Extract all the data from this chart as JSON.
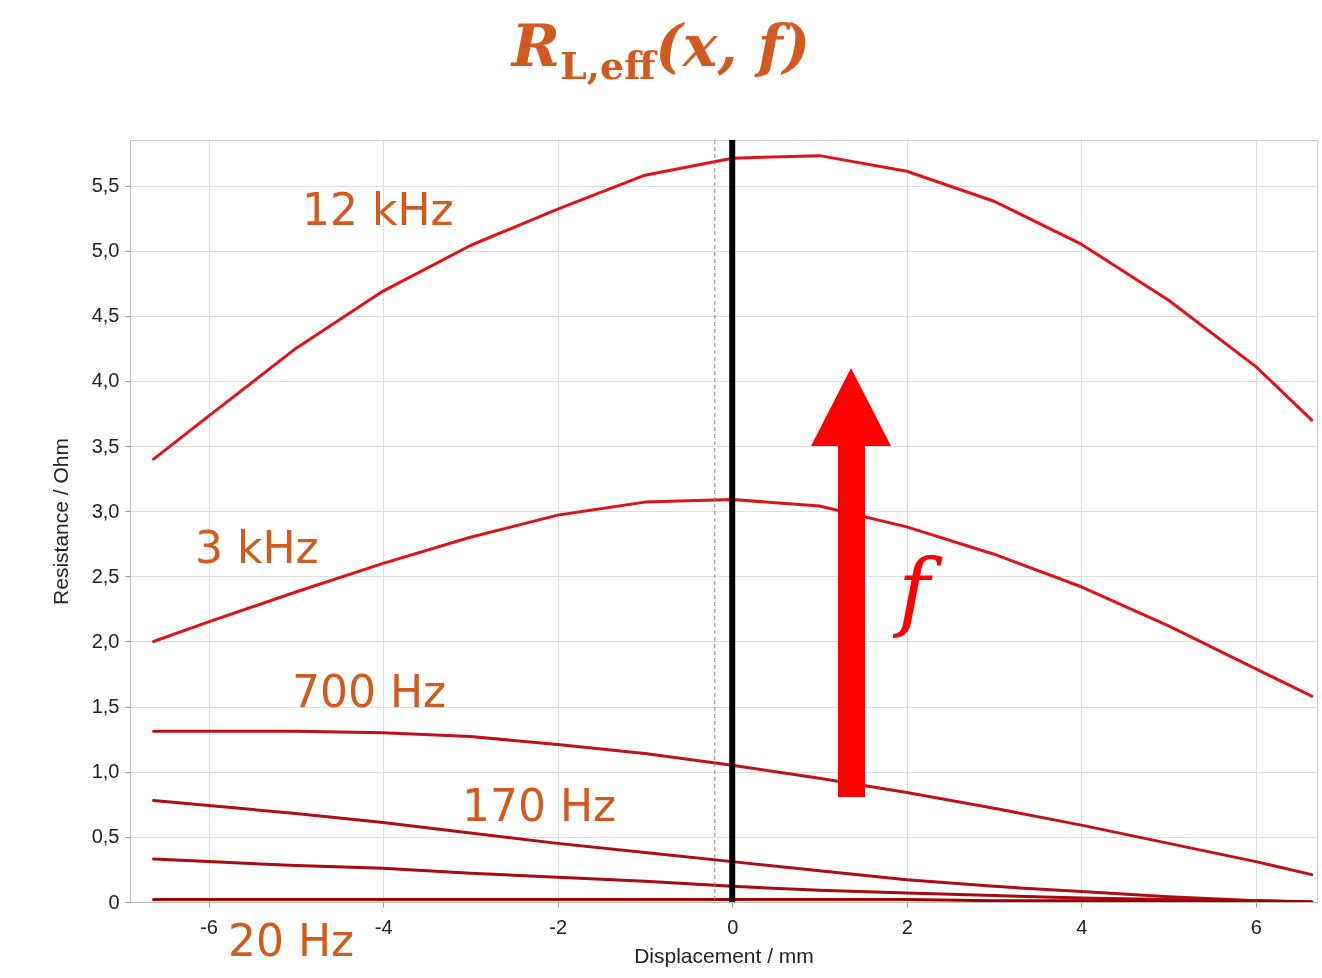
{
  "chart_data": {
    "type": "line",
    "title": "R$_{L,eff}$(x, f)",
    "xlabel": "Displacement / mm",
    "ylabel": "Resistance / Ohm",
    "x": [
      -6.63,
      -6,
      -5,
      -4,
      -3,
      -2,
      -1,
      0,
      1,
      2,
      3,
      4,
      5,
      6,
      6.64
    ],
    "series": [
      {
        "color": "#e3121a",
        "values": [
          3.4,
          3.73,
          4.25,
          4.69,
          5.04,
          5.32,
          5.58,
          5.71,
          5.73,
          5.61,
          5.38,
          5.05,
          4.62,
          4.11,
          3.7
        ]
      },
      {
        "color": "#dc1418",
        "values": [
          2.0,
          2.15,
          2.38,
          2.6,
          2.8,
          2.97,
          3.07,
          3.09,
          3.04,
          2.88,
          2.67,
          2.42,
          2.12,
          1.79,
          1.58
        ]
      },
      {
        "color": "#c01018",
        "values": [
          1.31,
          1.31,
          1.31,
          1.3,
          1.27,
          1.21,
          1.14,
          1.05,
          0.95,
          0.84,
          0.72,
          0.59,
          0.45,
          0.31,
          0.21
        ]
      },
      {
        "color": "#b00c14",
        "values": [
          0.78,
          0.74,
          0.68,
          0.61,
          0.53,
          0.45,
          0.38,
          0.31,
          0.24,
          0.17,
          0.12,
          0.08,
          0.04,
          0.01,
          0
        ]
      },
      {
        "color": "#a80a10",
        "values": [
          0.33,
          0.31,
          0.28,
          0.26,
          0.22,
          0.19,
          0.16,
          0.12,
          0.09,
          0.07,
          0.05,
          0.03,
          0.02,
          0.01,
          0
        ]
      },
      {
        "color": "#a00000",
        "values": [
          0.02,
          0.02,
          0.02,
          0.02,
          0.02,
          0.02,
          0.02,
          0.02,
          0.02,
          0.02,
          0.01,
          0.01,
          0.01,
          0,
          0
        ]
      }
    ],
    "annotations": [
      "12 kHz",
      "3 kHz",
      "700 Hz",
      "170 Hz",
      "20 Hz",
      "f"
    ],
    "ref_lines": [
      {
        "axis": "x",
        "value": 0,
        "color": "#000000"
      },
      {
        "axis": "x",
        "value": -0.2,
        "color": "#808080",
        "line_style": "dashed"
      }
    ],
    "xlim": [
      -6.9,
      6.7
    ],
    "xticks": [
      -6,
      -4,
      -2,
      0,
      2,
      4,
      6
    ],
    "ylim": [
      0,
      5.85
    ],
    "yticks": [
      0,
      {
        "value": 0.5,
        "label": "0,5"
      },
      {
        "value": 1,
        "label": "1,0"
      },
      {
        "value": 1.5,
        "label": "1,5"
      },
      {
        "value": 2,
        "label": "2,0"
      },
      {
        "value": 2.5,
        "label": "2,5"
      },
      {
        "value": 3,
        "label": "3,0"
      },
      {
        "value": 3.5,
        "label": "3,5"
      },
      {
        "value": 4,
        "label": "4,0"
      },
      {
        "value": 4.5,
        "label": "4,5"
      },
      {
        "value": 5,
        "label": "5,0"
      },
      {
        "value": 5.5,
        "label": "5,5"
      }
    ],
    "grid": true,
    "marker": "none",
    "line_style": "solid",
    "legend": false
  }
}
